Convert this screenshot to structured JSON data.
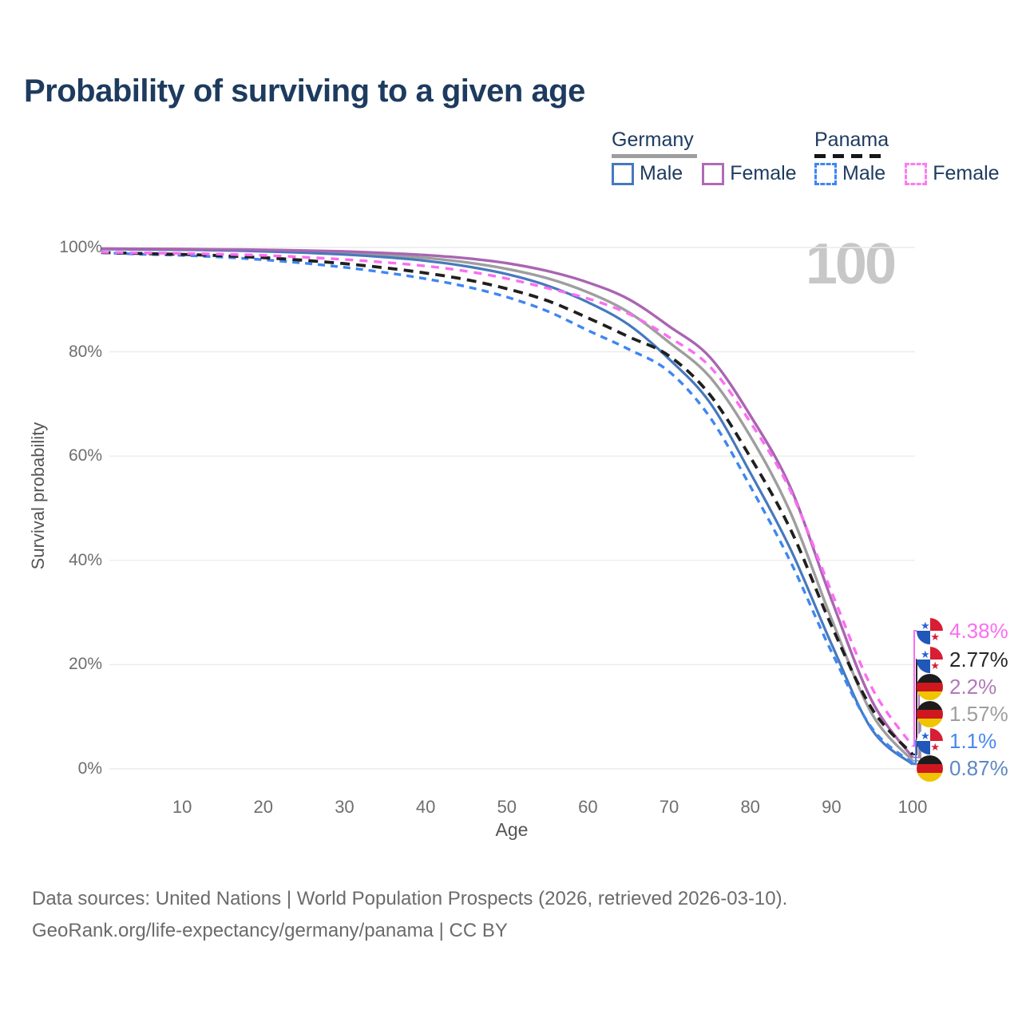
{
  "title": "Probability of surviving to a given age",
  "watermark": "100",
  "legend": {
    "groups": [
      {
        "label": "Germany",
        "underline_style": "solid",
        "underline_color": "#9e9e9e",
        "items": [
          {
            "label": "Male",
            "color": "#4679bd",
            "dashed": false
          },
          {
            "label": "Female",
            "color": "#b06ab8",
            "dashed": false
          }
        ]
      },
      {
        "label": "Panama",
        "underline_style": "dashed",
        "underline_color": "#161616",
        "items": [
          {
            "label": "Male",
            "color": "#3f86f2",
            "dashed": true
          },
          {
            "label": "Female",
            "color": "#fb7cf2",
            "dashed": true
          }
        ]
      }
    ]
  },
  "y_axis": {
    "title": "Survival probability",
    "ticks": [
      "0%",
      "20%",
      "40%",
      "60%",
      "80%",
      "100%"
    ],
    "tick_values": [
      0,
      20,
      40,
      60,
      80,
      100
    ]
  },
  "x_axis": {
    "title": "Age",
    "ticks": [
      10,
      20,
      30,
      40,
      50,
      60,
      70,
      80,
      90,
      100
    ]
  },
  "end_labels": [
    {
      "flag": "panama",
      "text": "4.38%",
      "color": "#fb6ef2",
      "series": "Panama Female",
      "value": 4.38
    },
    {
      "flag": "panama",
      "text": "2.77%",
      "color": "#262626",
      "series": "Panama",
      "value": 2.77
    },
    {
      "flag": "germany",
      "text": "2.2%",
      "color": "#b07ab8",
      "series": "Germany Female",
      "value": 2.2
    },
    {
      "flag": "germany",
      "text": "1.57%",
      "color": "#9e9e9e",
      "series": "Germany",
      "value": 1.57
    },
    {
      "flag": "panama",
      "text": "1.1%",
      "color": "#4788ef",
      "series": "Panama Male",
      "value": 1.1
    },
    {
      "flag": "germany",
      "text": "0.87%",
      "color": "#5d87c5",
      "series": "Germany Male",
      "value": 0.87
    }
  ],
  "footer": {
    "line1": "Data sources: United Nations | World Population Prospects (2026, retrieved 2026-03-10).",
    "line2": "GeoRank.org/life-expectancy/germany/panama | CC BY"
  },
  "chart_data": {
    "type": "line",
    "title": "Probability of surviving to a given age",
    "xlabel": "Age",
    "ylabel": "Survival probability",
    "xlim": [
      0,
      100
    ],
    "ylim": [
      0,
      100
    ],
    "grid": "horizontal",
    "legend_position": "top-right",
    "x": [
      0,
      5,
      10,
      15,
      20,
      25,
      30,
      35,
      40,
      45,
      50,
      55,
      60,
      65,
      70,
      75,
      80,
      85,
      90,
      95,
      100
    ],
    "series": [
      {
        "name": "Germany",
        "country": "Germany",
        "sex": "both",
        "color": "#9e9e9e",
        "dash": null,
        "width": 3.4,
        "values": [
          99.75,
          99.68,
          99.62,
          99.54,
          99.4,
          99.2,
          98.95,
          98.55,
          98.0,
          97.15,
          95.9,
          94.1,
          91.4,
          87.6,
          81.8,
          75.2,
          63.8,
          49.0,
          28.8,
          10.5,
          1.57
        ]
      },
      {
        "name": "Germany Male",
        "country": "Germany",
        "sex": "male",
        "color": "#4679bd",
        "dash": null,
        "width": 3.2,
        "values": [
          99.7,
          99.62,
          99.55,
          99.45,
          99.25,
          99.0,
          98.65,
          98.15,
          97.45,
          96.4,
          94.9,
          92.7,
          89.5,
          85.2,
          78.6,
          70.3,
          56.8,
          42.0,
          24.0,
          7.5,
          0.87
        ]
      },
      {
        "name": "Germany Female",
        "country": "Germany",
        "sex": "female",
        "color": "#a965b1",
        "dash": null,
        "width": 3.4,
        "values": [
          99.8,
          99.74,
          99.7,
          99.64,
          99.55,
          99.42,
          99.25,
          98.95,
          98.55,
          97.95,
          97.0,
          95.5,
          93.3,
          90.1,
          84.9,
          79.0,
          67.8,
          53.8,
          32.5,
          13.0,
          2.2
        ]
      },
      {
        "name": "Panama Male",
        "country": "Panama",
        "sex": "male",
        "color": "#3f86f2",
        "dash": "9 7",
        "width": 3.4,
        "values": [
          99.0,
          98.72,
          98.5,
          98.15,
          97.65,
          97.0,
          96.2,
          95.2,
          94.0,
          92.5,
          90.5,
          87.8,
          84.1,
          80.5,
          76.2,
          67.5,
          54.2,
          39.6,
          22.5,
          7.8,
          1.1
        ]
      },
      {
        "name": "Panama",
        "country": "Panama",
        "sex": "both",
        "color": "#1f1f1f",
        "dash": "12 8",
        "width": 3.8,
        "values": [
          99.05,
          98.85,
          98.68,
          98.42,
          98.05,
          97.55,
          96.9,
          96.1,
          95.1,
          93.85,
          92.1,
          89.8,
          86.5,
          82.9,
          79.2,
          71.8,
          59.8,
          45.8,
          27.5,
          11.5,
          2.77
        ]
      },
      {
        "name": "Panama Female",
        "country": "Panama",
        "sex": "female",
        "color": "#fb6ef2",
        "dash": "10 8",
        "width": 3.4,
        "values": [
          99.1,
          98.97,
          98.87,
          98.72,
          98.5,
          98.15,
          97.7,
          97.15,
          96.45,
          95.45,
          94.05,
          92.2,
          90.2,
          87.3,
          82.8,
          77.2,
          66.5,
          53.2,
          34.0,
          15.5,
          4.38
        ]
      }
    ]
  }
}
